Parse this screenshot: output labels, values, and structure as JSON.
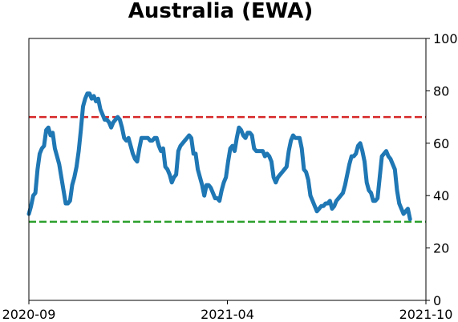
{
  "chart_data": {
    "type": "line",
    "title": "Australia (EWA)",
    "xlabel": "",
    "ylabel": "",
    "x_ticks": [
      "2020-09",
      "2021-04",
      "2021-10"
    ],
    "y_ticks": [
      0,
      20,
      40,
      60,
      80,
      100
    ],
    "ylim": [
      0,
      100
    ],
    "y_axis_side": "right",
    "grid": false,
    "legend": "none",
    "reference_lines": [
      {
        "y": 70,
        "color": "#d62728",
        "style": "dashed"
      },
      {
        "y": 30,
        "color": "#2ca02c",
        "style": "dashed"
      }
    ],
    "series": [
      {
        "color": "#1f77b4",
        "x_start": "2020-09",
        "x_end": "2021-10",
        "values": [
          33,
          36,
          40,
          41,
          50,
          56,
          58,
          59,
          65,
          66,
          63,
          64,
          58,
          55,
          52,
          47,
          42,
          37,
          37,
          38,
          44,
          47,
          51,
          57,
          65,
          74,
          77,
          79,
          79,
          77,
          78,
          76,
          77,
          73,
          71,
          69,
          69,
          68,
          66,
          68,
          69,
          70,
          69,
          66,
          62,
          61,
          62,
          59,
          56,
          54,
          53,
          58,
          62,
          62,
          62,
          62,
          61,
          61,
          62,
          62,
          59,
          57,
          58,
          51,
          50,
          48,
          45,
          47,
          48,
          57,
          59,
          60,
          61,
          62,
          63,
          62,
          56,
          56,
          50,
          47,
          44,
          40,
          44,
          44,
          43,
          41,
          39,
          39,
          38,
          42,
          45,
          47,
          53,
          58,
          59,
          57,
          62,
          66,
          65,
          63,
          62,
          64,
          64,
          63,
          58,
          57,
          57,
          57,
          57,
          55,
          56,
          55,
          53,
          47,
          45,
          47,
          48,
          49,
          50,
          51,
          57,
          61,
          63,
          62,
          62,
          62,
          58,
          50,
          49,
          46,
          40,
          38,
          36,
          34,
          35,
          36,
          36,
          37,
          37,
          38,
          35,
          36,
          38,
          39,
          40,
          41,
          44,
          48,
          52,
          55,
          55,
          56,
          59,
          60,
          57,
          53,
          45,
          42,
          41,
          38,
          38,
          39,
          47,
          55,
          56,
          57,
          55,
          54,
          52,
          50,
          42,
          37,
          35,
          33,
          34,
          35,
          31
        ]
      }
    ]
  }
}
